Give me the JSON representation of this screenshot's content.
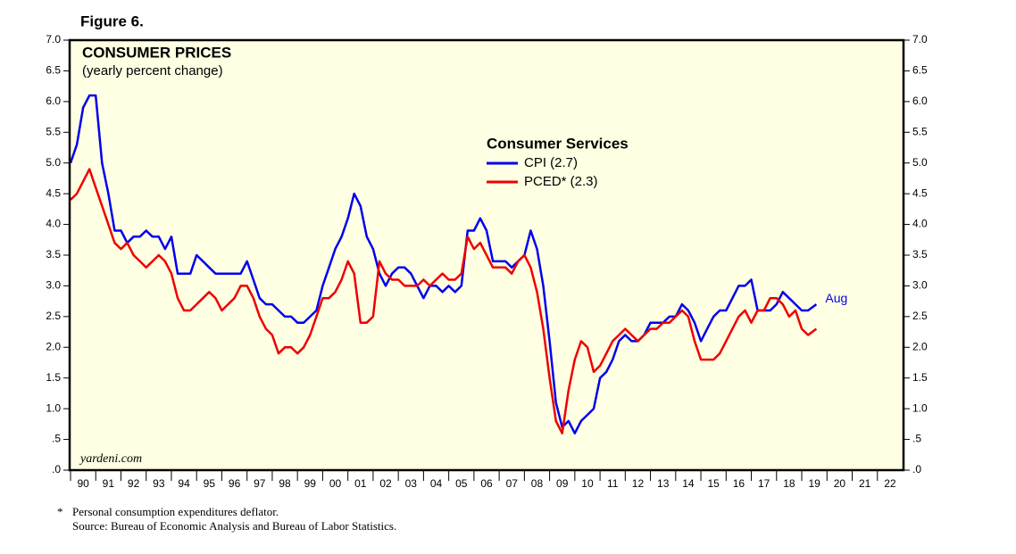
{
  "chart_data": {
    "type": "line",
    "figure_label": "Figure 6.",
    "title": "CONSUMER PRICES",
    "subtitle": "(yearly percent change)",
    "legend_title": "Consumer Services",
    "end_label": "Aug",
    "watermark": "yardeni.com",
    "footnotes": [
      "*",
      "Personal consumption expenditures deflator.",
      "Source: Bureau of Economic Analysis and Bureau of Labor Statistics."
    ],
    "x": [
      1990,
      1990.25,
      1990.5,
      1990.75,
      1991,
      1991.25,
      1991.5,
      1991.75,
      1992,
      1992.25,
      1992.5,
      1992.75,
      1993,
      1993.25,
      1993.5,
      1993.75,
      1994,
      1994.25,
      1994.5,
      1994.75,
      1995,
      1995.25,
      1995.5,
      1995.75,
      1996,
      1996.25,
      1996.5,
      1996.75,
      1997,
      1997.25,
      1997.5,
      1997.75,
      1998,
      1998.25,
      1998.5,
      1998.75,
      1999,
      1999.25,
      1999.5,
      1999.75,
      2000,
      2000.25,
      2000.5,
      2000.75,
      2001,
      2001.25,
      2001.5,
      2001.75,
      2002,
      2002.25,
      2002.5,
      2002.75,
      2003,
      2003.25,
      2003.5,
      2003.75,
      2004,
      2004.25,
      2004.5,
      2004.75,
      2005,
      2005.25,
      2005.5,
      2005.75,
      2006,
      2006.25,
      2006.5,
      2006.75,
      2007,
      2007.25,
      2007.5,
      2007.75,
      2008,
      2008.25,
      2008.5,
      2008.75,
      2009,
      2009.25,
      2009.5,
      2009.75,
      2010,
      2010.25,
      2010.5,
      2010.75,
      2011,
      2011.25,
      2011.5,
      2011.75,
      2012,
      2012.25,
      2012.5,
      2012.75,
      2013,
      2013.25,
      2013.5,
      2013.75,
      2014,
      2014.25,
      2014.5,
      2014.75,
      2015,
      2015.25,
      2015.5,
      2015.75,
      2016,
      2016.25,
      2016.5,
      2016.75,
      2017,
      2017.25,
      2017.5,
      2017.75,
      2018,
      2018.25,
      2018.5,
      2018.75,
      2019,
      2019.25,
      2019.58
    ],
    "series": [
      {
        "name": "CPI (2.7)",
        "color": "#0000ee",
        "values": [
          5.0,
          5.3,
          5.9,
          6.1,
          6.1,
          5.0,
          4.5,
          3.9,
          3.9,
          3.7,
          3.8,
          3.8,
          3.9,
          3.8,
          3.8,
          3.6,
          3.8,
          3.2,
          3.2,
          3.2,
          3.5,
          3.4,
          3.3,
          3.2,
          3.2,
          3.2,
          3.2,
          3.2,
          3.4,
          3.1,
          2.8,
          2.7,
          2.7,
          2.6,
          2.5,
          2.5,
          2.4,
          2.4,
          2.5,
          2.6,
          3.0,
          3.3,
          3.6,
          3.8,
          4.1,
          4.5,
          4.3,
          3.8,
          3.6,
          3.2,
          3.0,
          3.2,
          3.3,
          3.3,
          3.2,
          3.0,
          2.8,
          3.0,
          3.0,
          2.9,
          3.0,
          2.9,
          3.0,
          3.9,
          3.9,
          4.1,
          3.9,
          3.4,
          3.4,
          3.4,
          3.3,
          3.4,
          3.5,
          3.9,
          3.6,
          3.0,
          2.1,
          1.1,
          0.7,
          0.8,
          0.6,
          0.8,
          0.9,
          1.0,
          1.5,
          1.6,
          1.8,
          2.1,
          2.2,
          2.1,
          2.1,
          2.2,
          2.4,
          2.4,
          2.4,
          2.5,
          2.5,
          2.7,
          2.6,
          2.4,
          2.1,
          2.3,
          2.5,
          2.6,
          2.6,
          2.8,
          3.0,
          3.0,
          3.1,
          2.6,
          2.6,
          2.6,
          2.7,
          2.9,
          2.8,
          2.7,
          2.6,
          2.6,
          2.7
        ]
      },
      {
        "name": "PCED* (2.3)",
        "color": "#ee0000",
        "values": [
          4.4,
          4.5,
          4.7,
          4.9,
          4.6,
          4.3,
          4.0,
          3.7,
          3.6,
          3.7,
          3.5,
          3.4,
          3.3,
          3.4,
          3.5,
          3.4,
          3.2,
          2.8,
          2.6,
          2.6,
          2.7,
          2.8,
          2.9,
          2.8,
          2.6,
          2.7,
          2.8,
          3.0,
          3.0,
          2.8,
          2.5,
          2.3,
          2.2,
          1.9,
          2.0,
          2.0,
          1.9,
          2.0,
          2.2,
          2.5,
          2.8,
          2.8,
          2.9,
          3.1,
          3.4,
          3.2,
          2.4,
          2.4,
          2.5,
          3.4,
          3.2,
          3.1,
          3.1,
          3.0,
          3.0,
          3.0,
          3.1,
          3.0,
          3.1,
          3.2,
          3.1,
          3.1,
          3.2,
          3.8,
          3.6,
          3.7,
          3.5,
          3.3,
          3.3,
          3.3,
          3.2,
          3.4,
          3.5,
          3.3,
          2.9,
          2.3,
          1.5,
          0.8,
          0.6,
          1.3,
          1.8,
          2.1,
          2.0,
          1.6,
          1.7,
          1.9,
          2.1,
          2.2,
          2.3,
          2.2,
          2.1,
          2.2,
          2.3,
          2.3,
          2.4,
          2.4,
          2.5,
          2.6,
          2.5,
          2.1,
          1.8,
          1.8,
          1.8,
          1.9,
          2.1,
          2.3,
          2.5,
          2.6,
          2.4,
          2.6,
          2.6,
          2.8,
          2.8,
          2.7,
          2.5,
          2.6,
          2.3,
          2.2,
          2.3
        ]
      }
    ],
    "xlim": [
      1990,
      2023
    ],
    "ylim": [
      0,
      7
    ],
    "yticks": [
      {
        "value": 0,
        "label": ".0"
      },
      {
        "value": 0.5,
        "label": ".5"
      },
      {
        "value": 1,
        "label": "1.0"
      },
      {
        "value": 1.5,
        "label": "1.5"
      },
      {
        "value": 2,
        "label": "2.0"
      },
      {
        "value": 2.5,
        "label": "2.5"
      },
      {
        "value": 3,
        "label": "3.0"
      },
      {
        "value": 3.5,
        "label": "3.5"
      },
      {
        "value": 4,
        "label": "4.0"
      },
      {
        "value": 4.5,
        "label": "4.5"
      },
      {
        "value": 5,
        "label": "5.0"
      },
      {
        "value": 5.5,
        "label": "5.5"
      },
      {
        "value": 6,
        "label": "6.0"
      },
      {
        "value": 6.5,
        "label": "6.5"
      },
      {
        "value": 7,
        "label": "7.0"
      }
    ],
    "xticks": [
      {
        "value": 1990,
        "label": "90"
      },
      {
        "value": 1991,
        "label": "91"
      },
      {
        "value": 1992,
        "label": "92"
      },
      {
        "value": 1993,
        "label": "93"
      },
      {
        "value": 1994,
        "label": "94"
      },
      {
        "value": 1995,
        "label": "95"
      },
      {
        "value": 1996,
        "label": "96"
      },
      {
        "value": 1997,
        "label": "97"
      },
      {
        "value": 1998,
        "label": "98"
      },
      {
        "value": 1999,
        "label": "99"
      },
      {
        "value": 2000,
        "label": "00"
      },
      {
        "value": 2001,
        "label": "01"
      },
      {
        "value": 2002,
        "label": "02"
      },
      {
        "value": 2003,
        "label": "03"
      },
      {
        "value": 2004,
        "label": "04"
      },
      {
        "value": 2005,
        "label": "05"
      },
      {
        "value": 2006,
        "label": "06"
      },
      {
        "value": 2007,
        "label": "07"
      },
      {
        "value": 2008,
        "label": "08"
      },
      {
        "value": 2009,
        "label": "09"
      },
      {
        "value": 2010,
        "label": "10"
      },
      {
        "value": 2011,
        "label": "11"
      },
      {
        "value": 2012,
        "label": "12"
      },
      {
        "value": 2013,
        "label": "13"
      },
      {
        "value": 2014,
        "label": "14"
      },
      {
        "value": 2015,
        "label": "15"
      },
      {
        "value": 2016,
        "label": "16"
      },
      {
        "value": 2017,
        "label": "17"
      },
      {
        "value": 2018,
        "label": "18"
      },
      {
        "value": 2019,
        "label": "19"
      },
      {
        "value": 2020,
        "label": "20"
      },
      {
        "value": 2021,
        "label": "21"
      },
      {
        "value": 2022,
        "label": "22"
      }
    ],
    "grid": false
  }
}
